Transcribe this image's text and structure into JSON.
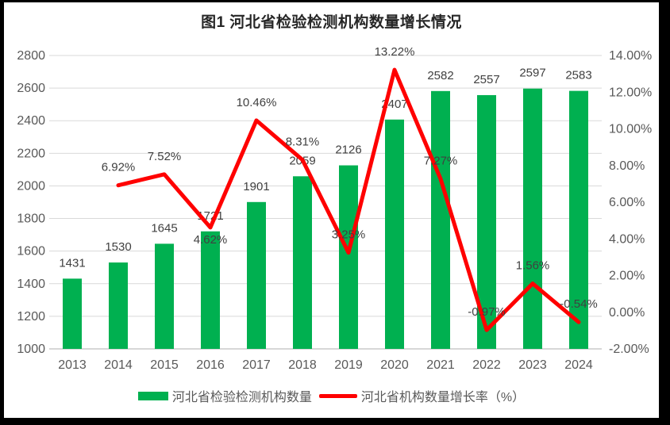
{
  "title": "图1  河北省检验检测机构数量增长情况",
  "legend": [
    {
      "label": "河北省检验检测机构数量",
      "marker": "bar-swatch"
    },
    {
      "label": "河北省机构数量增长率（%）",
      "marker": "line-swatch"
    }
  ],
  "colors": {
    "bar": "#00B050",
    "line": "#FF0000",
    "axis_text": "#595959",
    "data_label": "#404040",
    "gridline": "#D9D9D9",
    "axis_line": "#BFBFBF",
    "title_text": "#262626",
    "background": "#FFFFFF",
    "frame": "#000000"
  },
  "chart_data": {
    "type": "bar+line combo",
    "title": "图1  河北省检验检测机构数量增长情况",
    "categories": [
      "2013",
      "2014",
      "2015",
      "2016",
      "2017",
      "2018",
      "2019",
      "2020",
      "2021",
      "2022",
      "2023",
      "2024"
    ],
    "series": [
      {
        "name": "河北省检验检测机构数量",
        "type": "bar",
        "axis": "left",
        "values": [
          1431,
          1530,
          1645,
          1721,
          1901,
          2059,
          2126,
          2407,
          2582,
          2557,
          2597,
          2583
        ],
        "data_labels": [
          "1431",
          "1530",
          "1645",
          "1721",
          "1901",
          "2059",
          "2126",
          "2407",
          "2582",
          "2557",
          "2597",
          "2583"
        ]
      },
      {
        "name": "河北省机构数量增长率（%）",
        "type": "line",
        "axis": "right",
        "values": [
          null,
          6.92,
          7.52,
          4.62,
          10.46,
          8.31,
          3.25,
          13.22,
          7.27,
          -0.97,
          1.56,
          -0.54
        ],
        "data_labels": [
          null,
          "6.92%",
          "7.52%",
          "4.62%",
          "10.46%",
          "8.31%",
          "3.25%",
          "13.22%",
          "7.27%",
          "-0.97%",
          "1.56%",
          "-0.54%"
        ],
        "label_below_point": [
          false,
          false,
          false,
          true,
          false,
          false,
          false,
          false,
          false,
          false,
          false,
          false
        ]
      }
    ],
    "left_axis": {
      "min": 1000,
      "max": 2800,
      "step": 200,
      "tick_labels": [
        "2800",
        "2600",
        "2400",
        "2200",
        "2000",
        "1800",
        "1600",
        "1400",
        "1200",
        "1000"
      ]
    },
    "right_axis": {
      "min": -2,
      "max": 14,
      "step": 2,
      "tick_labels": [
        "14.00%",
        "12.00%",
        "10.00%",
        "8.00%",
        "6.00%",
        "4.00%",
        "2.00%",
        "0.00%",
        "-2.00%"
      ]
    },
    "grid": "horizontal",
    "legend_position": "bottom"
  }
}
